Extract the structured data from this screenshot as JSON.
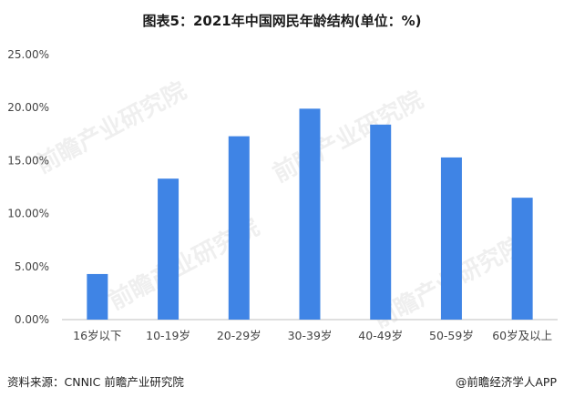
{
  "title": "图表5：2021年中国网民年龄结构(单位：%)",
  "watermark": "前瞻产业研究院",
  "source": "资料来源：CNNIC 前瞻产业研究院",
  "credit": "@前瞻经济学人APP",
  "colors": {
    "bar": "#3f84e5",
    "axis": "#bfbfbf",
    "text": "#444444"
  },
  "chart_data": {
    "type": "bar",
    "title": "图表5：2021年中国网民年龄结构(单位：%)",
    "categories": [
      "16岁以下",
      "10-19岁",
      "20-29岁",
      "30-39岁",
      "40-49岁",
      "50-59岁",
      "60岁及以上"
    ],
    "values": [
      4.3,
      13.3,
      17.3,
      19.9,
      18.4,
      15.3,
      11.5
    ],
    "ylim": [
      0,
      25
    ],
    "yticks": [
      "0.00%",
      "5.00%",
      "10.00%",
      "15.00%",
      "20.00%",
      "25.00%"
    ],
    "ytick_values": [
      0,
      5,
      10,
      15,
      20,
      25
    ],
    "grid": false,
    "legend": "none"
  }
}
